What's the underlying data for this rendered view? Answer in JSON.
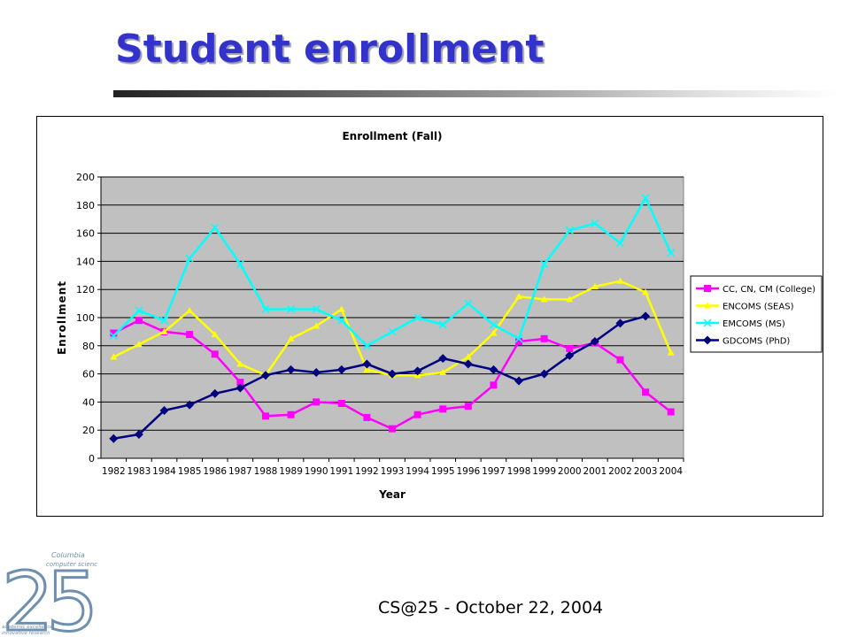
{
  "slide": {
    "title": "Student enrollment",
    "footer": "CS@25 - October 22, 2004"
  },
  "logo": {
    "number": "25",
    "lines": [
      "Columbia",
      "computer science",
      "academic excellence",
      "innovative research"
    ]
  },
  "chart_data": {
    "type": "line",
    "title": "Enrollment (Fall)",
    "xlabel": "Year",
    "ylabel": "Enrollment",
    "ylim": [
      0,
      200
    ],
    "yticks": [
      0,
      20,
      40,
      60,
      80,
      100,
      120,
      140,
      160,
      180,
      200
    ],
    "grid": true,
    "legend_position": "right",
    "categories": [
      "1982",
      "1983",
      "1984",
      "1985",
      "1986",
      "1987",
      "1988",
      "1989",
      "1990",
      "1991",
      "1992",
      "1993",
      "1994",
      "1995",
      "1996",
      "1997",
      "1998",
      "1999",
      "2000",
      "2001",
      "2002",
      "2003",
      "2004"
    ],
    "series": [
      {
        "name": "CC, CN, CM (College)",
        "color": "#ff00ff",
        "marker": "square",
        "values": [
          89,
          98,
          90,
          88,
          74,
          54,
          30,
          31,
          40,
          39,
          29,
          21,
          31,
          35,
          37,
          52,
          83,
          85,
          78,
          82,
          70,
          47,
          33
        ]
      },
      {
        "name": "ENCOMS (SEAS)",
        "color": "#ffff00",
        "marker": "triangle",
        "values": [
          72,
          81,
          90,
          105,
          88,
          67,
          59,
          85,
          94,
          106,
          63,
          59,
          59,
          61,
          72,
          89,
          115,
          113,
          113,
          122,
          126,
          118,
          75
        ]
      },
      {
        "name": "EMCOMS (MS)",
        "color": "#00ffff",
        "marker": "x",
        "values": [
          87,
          105,
          98,
          142,
          164,
          138,
          106,
          106,
          106,
          98,
          80,
          90,
          100,
          95,
          110,
          95,
          85,
          138,
          162,
          167,
          153,
          185,
          146
        ]
      },
      {
        "name": "GDCOMS (PhD)",
        "color": "#000080",
        "marker": "diamond",
        "values": [
          14,
          17,
          34,
          38,
          46,
          50,
          59,
          63,
          61,
          63,
          67,
          60,
          62,
          71,
          67,
          63,
          55,
          60,
          73,
          83,
          96,
          101,
          null
        ]
      }
    ],
    "plot_background": "#c0c0c0"
  }
}
